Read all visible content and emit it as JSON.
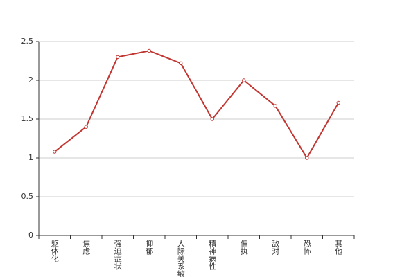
{
  "chart_data": {
    "type": "line",
    "categories": [
      "躯体化",
      "焦虑",
      "强迫症状",
      "抑郁",
      "人际关系敏感",
      "精神病性",
      "偏执",
      "敌对",
      "恐怖",
      "其他"
    ],
    "series": [
      {
        "name": "",
        "color": "#c23531",
        "values": [
          1.08,
          1.4,
          2.3,
          2.38,
          2.22,
          1.5,
          2.0,
          1.67,
          1.0,
          1.71
        ]
      }
    ],
    "ylim": [
      0,
      2.5
    ],
    "yticks": [
      0,
      0.5,
      1,
      1.5,
      2,
      2.5
    ],
    "grid": true
  }
}
